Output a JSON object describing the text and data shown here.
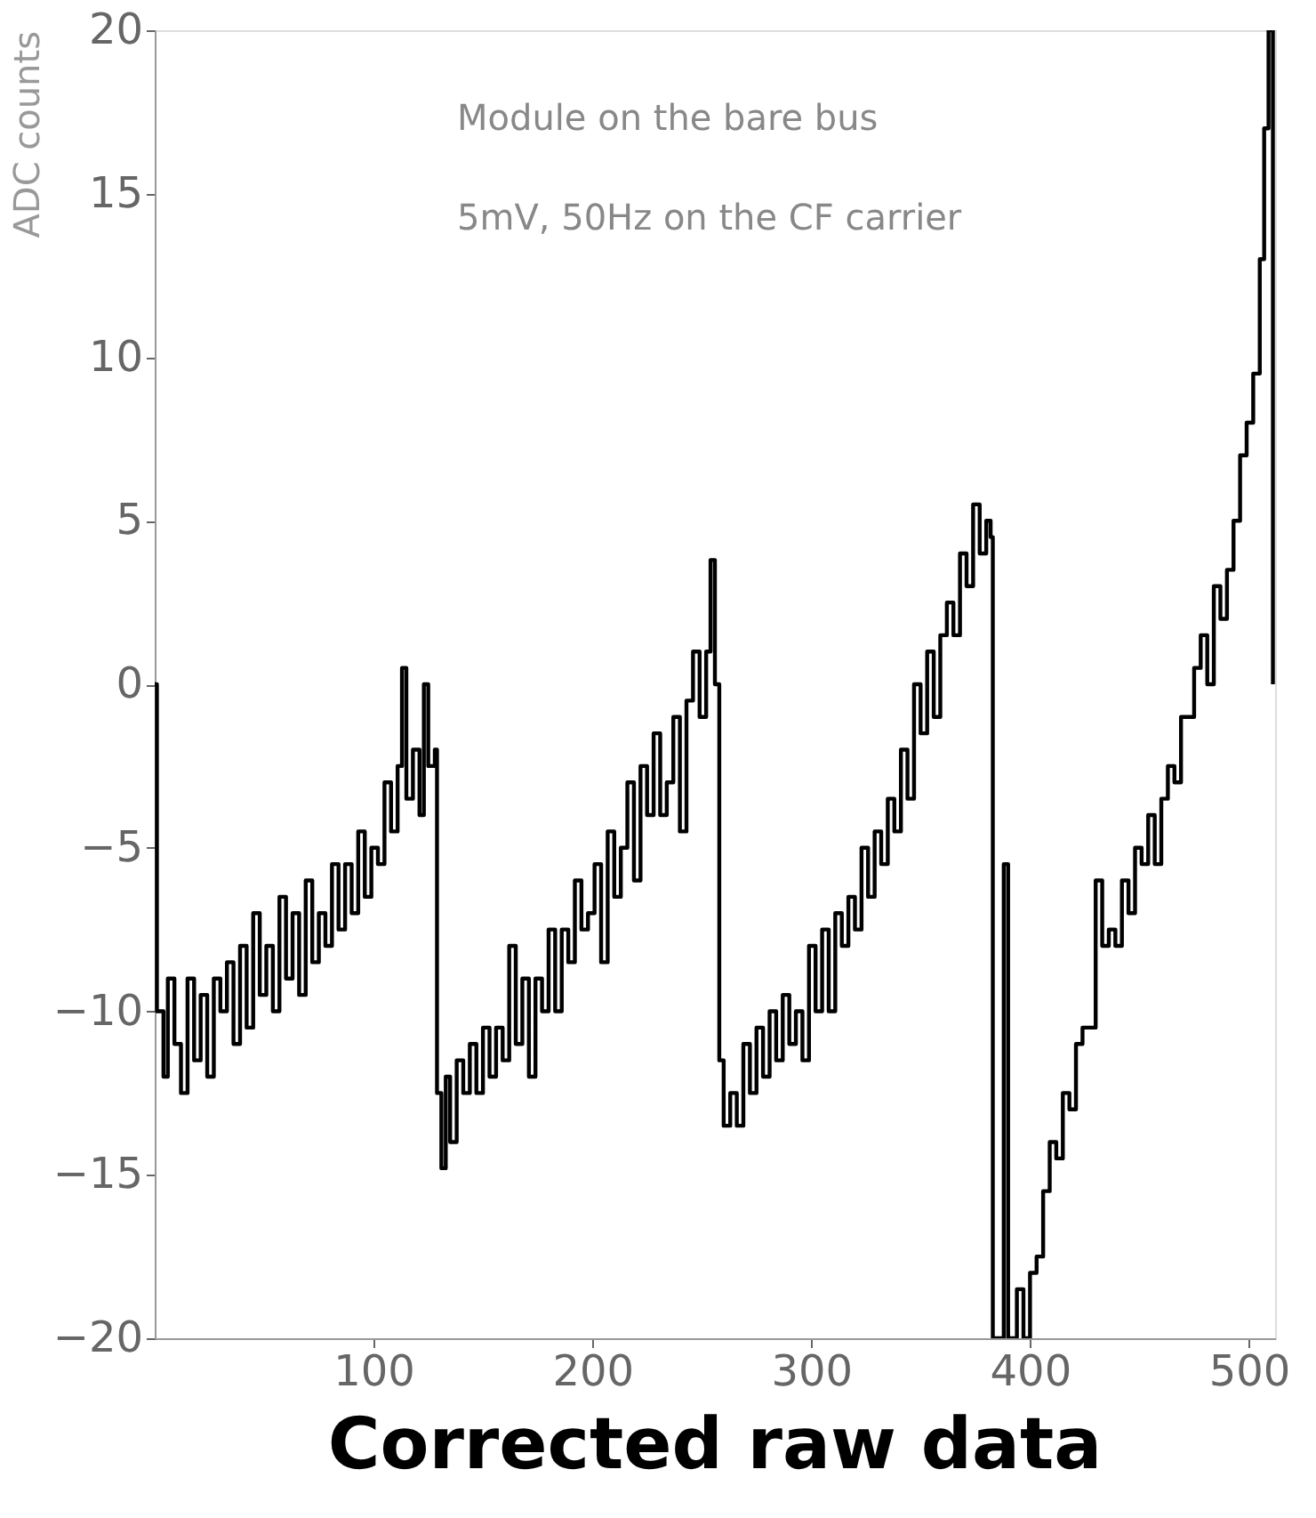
{
  "chart_data": {
    "type": "step",
    "title": "Corrected raw data",
    "ylabel": "ADC counts",
    "annotations": [
      "Module on the bare bus",
      "5mV, 50Hz on the CF carrier"
    ],
    "xlim": [
      0,
      512
    ],
    "xticks": [
      100,
      200,
      300,
      400,
      500
    ],
    "ylim": [
      -20,
      20
    ],
    "yticks": [
      -20,
      -15,
      -10,
      -5,
      0,
      5,
      10,
      15,
      20
    ],
    "grid": false,
    "line_style": "solid",
    "marker": "none",
    "series": [
      {
        "color": "#000000",
        "x": [
          0,
          1,
          4,
          6,
          9,
          12,
          15,
          18,
          21,
          24,
          27,
          30,
          33,
          36,
          39,
          42,
          45,
          48,
          51,
          54,
          57,
          60,
          63,
          66,
          69,
          72,
          75,
          78,
          81,
          84,
          87,
          90,
          93,
          96,
          99,
          102,
          105,
          108,
          111,
          113,
          115,
          118,
          121,
          123,
          125,
          128,
          129,
          131,
          133,
          135,
          138,
          141,
          144,
          147,
          150,
          153,
          156,
          159,
          162,
          165,
          168,
          171,
          174,
          177,
          180,
          183,
          186,
          189,
          192,
          195,
          198,
          201,
          204,
          207,
          210,
          213,
          216,
          219,
          222,
          225,
          228,
          231,
          234,
          237,
          240,
          243,
          246,
          249,
          252,
          254,
          256,
          258,
          260,
          263,
          266,
          269,
          272,
          275,
          278,
          281,
          284,
          287,
          290,
          293,
          296,
          299,
          302,
          305,
          308,
          311,
          314,
          317,
          320,
          323,
          326,
          329,
          332,
          335,
          338,
          341,
          344,
          347,
          350,
          353,
          356,
          359,
          362,
          365,
          368,
          371,
          374,
          377,
          380,
          382,
          383,
          387,
          388,
          390,
          394,
          397,
          400,
          403,
          406,
          409,
          412,
          415,
          418,
          421,
          424,
          427,
          430,
          433,
          436,
          439,
          442,
          445,
          448,
          451,
          454,
          457,
          460,
          463,
          466,
          469,
          472,
          475,
          478,
          481,
          484,
          487,
          490,
          493,
          496,
          499,
          502,
          505,
          507,
          509,
          511
        ],
        "values": [
          0,
          -10,
          -12,
          -9,
          -11,
          -12.5,
          -9,
          -11.5,
          -9.5,
          -12,
          -9,
          -10,
          -8.5,
          -11,
          -8,
          -10.5,
          -7,
          -9.5,
          -8,
          -10,
          -6.5,
          -9,
          -7,
          -9.5,
          -6,
          -8.5,
          -7,
          -8,
          -5.5,
          -7.5,
          -5.5,
          -7,
          -4.5,
          -6.5,
          -5,
          -5.5,
          -3,
          -4.5,
          -2.5,
          0.5,
          -3.5,
          -2,
          -4,
          0,
          -2.5,
          -2,
          -12.5,
          -14.8,
          -12,
          -14,
          -11.5,
          -12.5,
          -11,
          -12.5,
          -10.5,
          -12,
          -10.5,
          -11.5,
          -8,
          -11,
          -9,
          -12,
          -9,
          -10,
          -7.5,
          -10,
          -7.5,
          -8.5,
          -6,
          -7.5,
          -7,
          -5.5,
          -8.5,
          -4.5,
          -6.5,
          -5,
          -3,
          -6,
          -2.5,
          -4,
          -1.5,
          -4,
          -3,
          -1,
          -4.5,
          -0.5,
          1,
          -1,
          1,
          3.8,
          0,
          -11.5,
          -13.5,
          -12.5,
          -13.5,
          -11,
          -12.5,
          -10.5,
          -12,
          -10,
          -11.5,
          -9.5,
          -11,
          -10,
          -11.5,
          -8,
          -10,
          -7.5,
          -10,
          -7,
          -8,
          -6.5,
          -7.5,
          -5,
          -6.5,
          -4.5,
          -5.5,
          -3.5,
          -4.5,
          -2,
          -3.5,
          0,
          -1.5,
          1,
          -1,
          1.5,
          2.5,
          1.5,
          4,
          3,
          5.5,
          4,
          5,
          4.5,
          -20,
          -20,
          -5.5,
          -20,
          -18.5,
          -20,
          -18,
          -17.5,
          -15.5,
          -14,
          -14.5,
          -12.5,
          -13,
          -11,
          -10.5,
          -10.5,
          -6,
          -8,
          -7.5,
          -8,
          -6,
          -7,
          -5,
          -5.5,
          -4,
          -5.5,
          -3.5,
          -2.5,
          -3,
          -1,
          -1,
          0.5,
          1.5,
          0,
          3,
          2,
          3.5,
          5,
          7,
          8,
          9.5,
          13,
          17,
          20,
          0
        ]
      }
    ]
  }
}
